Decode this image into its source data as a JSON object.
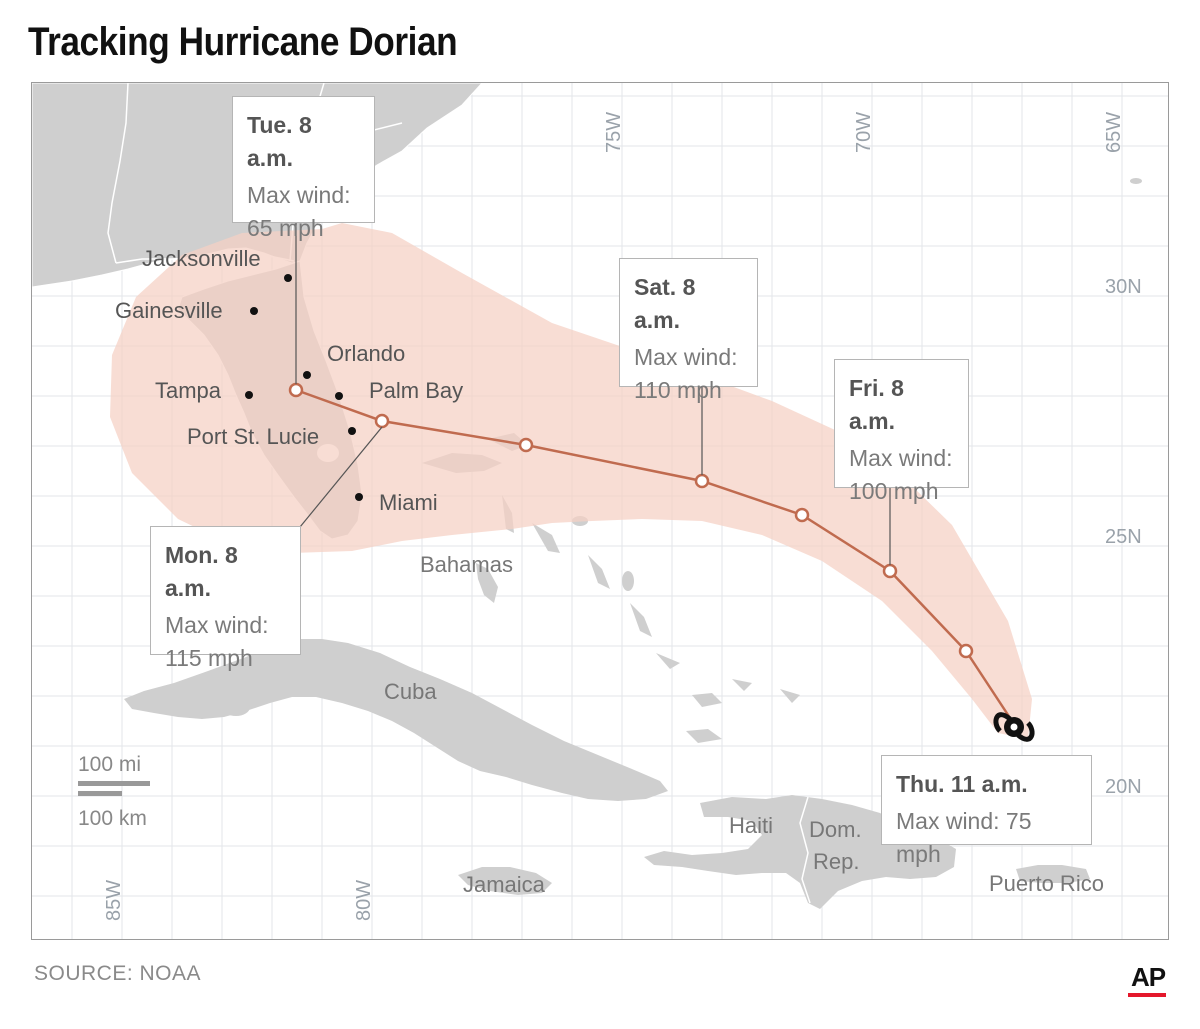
{
  "title": "Tracking Hurricane Dorian",
  "source": "SOURCE: NOAA",
  "logo": "AP",
  "longitudes": [
    "85W",
    "80W",
    "75W",
    "70W",
    "65W"
  ],
  "latitudes": [
    "30N",
    "25N",
    "20N"
  ],
  "cities": [
    "Jacksonville",
    "Gainesville",
    "Orlando",
    "Tampa",
    "Palm Bay",
    "Port St. Lucie",
    "Miami"
  ],
  "regions": [
    "Bahamas",
    "Cuba",
    "Haiti",
    "Dom.",
    "Rep.",
    "Jamaica",
    "Puerto Rico"
  ],
  "scale": {
    "miles": "100 mi",
    "km": "100 km"
  },
  "callouts": {
    "tue": {
      "when": "Tue. 8 a.m.",
      "line1": "Max wind:",
      "line2": "65 mph"
    },
    "sat": {
      "when": "Sat. 8 a.m.",
      "line1": "Max wind:",
      "line2": "110 mph"
    },
    "fri": {
      "when": "Fri. 8 a.m.",
      "line1": "Max wind:",
      "line2": "100 mph"
    },
    "mon": {
      "when": "Mon. 8 a.m.",
      "line1": "Max wind:",
      "line2": "115 mph"
    },
    "thu": {
      "when": "Thu. 11 a.m.",
      "line1": "Max wind: 75 mph"
    }
  },
  "colors": {
    "land": "#cfcfcf",
    "cone": "#f5d0c3",
    "track": "#c06b4f",
    "grid": "#dfe3e8"
  }
}
